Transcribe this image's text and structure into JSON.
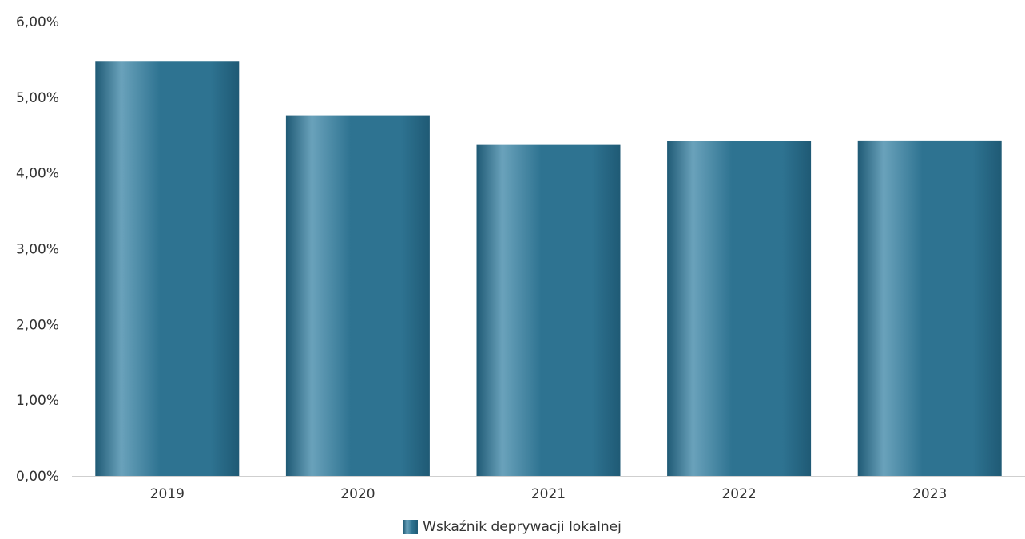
{
  "chart_data": {
    "type": "bar",
    "categories": [
      "2019",
      "2020",
      "2021",
      "2022",
      "2023"
    ],
    "series": [
      {
        "name": "Wskaźnik deprywacji lokalnej",
        "values": [
          5.47,
          4.76,
          4.38,
          4.42,
          4.43
        ]
      }
    ],
    "yticks": [
      "0,00%",
      "1,00%",
      "2,00%",
      "3,00%",
      "4,00%",
      "5,00%",
      "6,00%"
    ],
    "ylim": [
      0,
      6
    ],
    "unit": "%",
    "grid": false,
    "legend_position": "bottom-center",
    "colors": {
      "bar": "#2e7391",
      "bar_light": "#6aa2bb",
      "bar_dark": "#1f5a75",
      "axis": "#cfcfcf"
    }
  },
  "legend": {
    "label": "Wskaźnik deprywacji lokalnej"
  }
}
